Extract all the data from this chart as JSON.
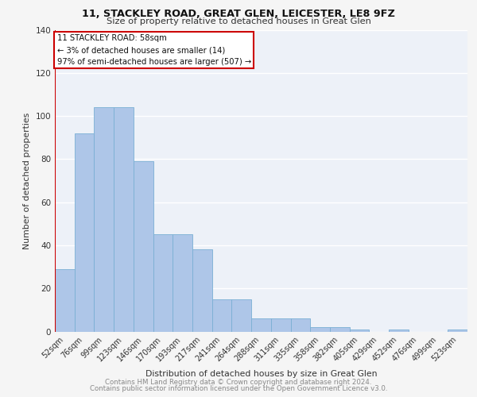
{
  "title1": "11, STACKLEY ROAD, GREAT GLEN, LEICESTER, LE8 9FZ",
  "title2": "Size of property relative to detached houses in Great Glen",
  "xlabel": "Distribution of detached houses by size in Great Glen",
  "ylabel": "Number of detached properties",
  "categories": [
    "52sqm",
    "76sqm",
    "99sqm",
    "123sqm",
    "146sqm",
    "170sqm",
    "193sqm",
    "217sqm",
    "241sqm",
    "264sqm",
    "288sqm",
    "311sqm",
    "335sqm",
    "358sqm",
    "382sqm",
    "405sqm",
    "429sqm",
    "452sqm",
    "476sqm",
    "499sqm",
    "523sqm"
  ],
  "values": [
    29,
    92,
    104,
    104,
    79,
    45,
    45,
    38,
    15,
    15,
    6,
    6,
    6,
    2,
    2,
    1,
    0,
    1,
    0,
    0,
    1
  ],
  "bar_color": "#aec6e8",
  "bar_edge_color": "#7aafd4",
  "annotation_lines": [
    "11 STACKLEY ROAD: 58sqm",
    "← 3% of detached houses are smaller (14)",
    "97% of semi-detached houses are larger (507) →"
  ],
  "annotation_box_color": "#ffffff",
  "annotation_box_edge": "#cc0000",
  "red_line_x": 0.5,
  "ylim": [
    0,
    140
  ],
  "yticks": [
    0,
    20,
    40,
    60,
    80,
    100,
    120,
    140
  ],
  "background_color": "#edf1f8",
  "grid_color": "#ffffff",
  "footer1": "Contains HM Land Registry data © Crown copyright and database right 2024.",
  "footer2": "Contains public sector information licensed under the Open Government Licence v3.0."
}
